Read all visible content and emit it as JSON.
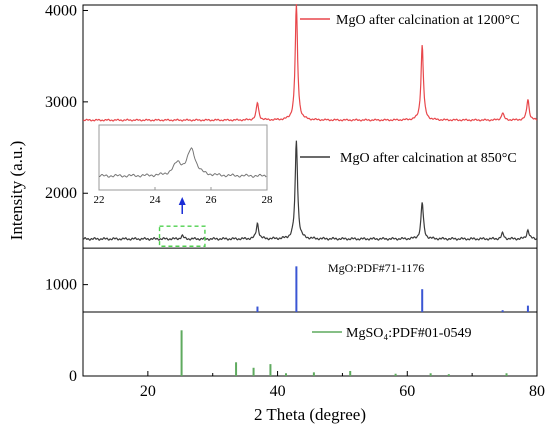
{
  "chart_data": {
    "type": "line",
    "xlabel": "2 Theta (degree)",
    "ylabel": "Intensity (a.u.)",
    "xlim": [
      10,
      80
    ],
    "ylim": [
      0,
      4060
    ],
    "x_ticks": [
      20,
      40,
      60,
      80
    ],
    "y_ticks": [
      0,
      1000,
      2000,
      3000,
      4000
    ],
    "grid": false,
    "panel_dividers": [
      1400,
      700
    ],
    "series": [
      {
        "name": "MgO after calcination at 1200°C",
        "color": "#e8474b",
        "baseline": 2800,
        "peaks": [
          [
            36.9,
            2990
          ],
          [
            42.9,
            4060
          ],
          [
            62.3,
            3620
          ],
          [
            74.7,
            2880
          ],
          [
            78.6,
            3030
          ]
        ]
      },
      {
        "name": "MgO after calcination at 850°C",
        "color": "#3a3a3a",
        "baseline": 1500,
        "peaks": [
          [
            25.3,
            1535
          ],
          [
            36.9,
            1670
          ],
          [
            42.9,
            2580
          ],
          [
            62.3,
            1900
          ],
          [
            74.7,
            1560
          ],
          [
            78.6,
            1600
          ]
        ]
      },
      {
        "name": "MgO:PDF#71-1176",
        "color": "#3a56d4",
        "baseline": 700,
        "sticks": [
          [
            36.9,
            760
          ],
          [
            42.9,
            1200
          ],
          [
            62.3,
            950
          ],
          [
            74.7,
            720
          ],
          [
            78.6,
            770
          ]
        ]
      },
      {
        "name": "MgSO₄:PDF#01-0549",
        "color": "#5faa5f",
        "baseline": 0,
        "sticks": [
          [
            25.2,
            500
          ],
          [
            33.6,
            150
          ],
          [
            36.3,
            90
          ],
          [
            38.9,
            130
          ],
          [
            41.3,
            30
          ],
          [
            45.6,
            40
          ],
          [
            51.2,
            55
          ],
          [
            58.2,
            25
          ],
          [
            63.6,
            30
          ],
          [
            66.4,
            20
          ],
          [
            75.3,
            30
          ]
        ]
      }
    ],
    "inset": {
      "xlim": [
        22,
        28
      ],
      "x_ticks": [
        22,
        24,
        26,
        28
      ],
      "color": "#777777",
      "peaks": [
        [
          24.8,
          0.45
        ],
        [
          25.3,
          1.0
        ]
      ]
    }
  }
}
